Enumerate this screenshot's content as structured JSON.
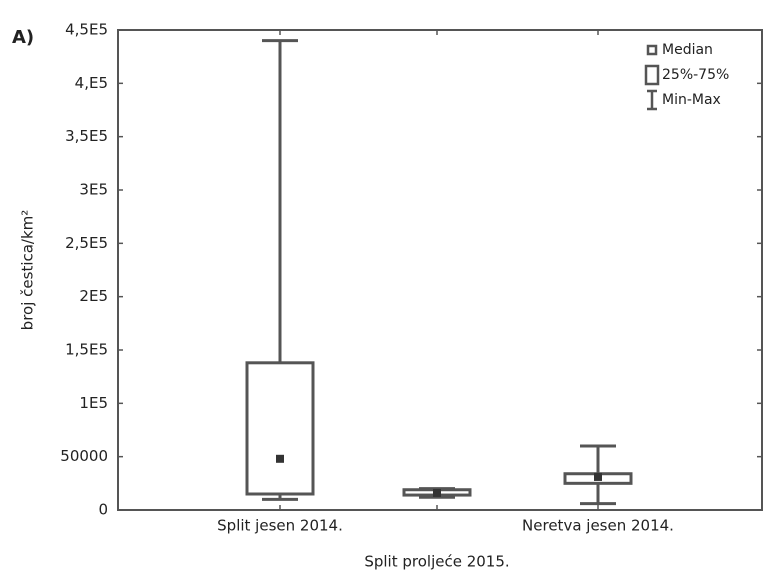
{
  "chart_data": {
    "type": "box",
    "panel_label": "A)",
    "ylabel": "broj čestica/km²",
    "categories": [
      "Split jesen 2014.",
      "Split proljeće 2015.",
      "Neretva jesen 2014."
    ],
    "min": [
      10000,
      12000,
      6000
    ],
    "q1": [
      15000,
      14000,
      25000
    ],
    "median": [
      48000,
      16000,
      31000
    ],
    "q3": [
      138000,
      19000,
      34000
    ],
    "max": [
      440000,
      20000,
      60000
    ],
    "color": "#555555",
    "ylim": [
      0,
      450000
    ],
    "yticks": [
      0,
      50000,
      {
        "value": 100000,
        "label": "1E5"
      },
      {
        "value": 150000,
        "label": "1,5E5"
      },
      {
        "value": 200000,
        "label": "2E5"
      },
      {
        "value": 250000,
        "label": "2,5E5"
      },
      {
        "value": 300000,
        "label": "3E5"
      },
      {
        "value": 350000,
        "label": "3,5E5"
      },
      {
        "value": 400000,
        "label": "4,E5"
      },
      {
        "value": 450000,
        "label": "4,5E5"
      }
    ],
    "legend": {
      "position": "upper right",
      "entries": [
        "Median",
        "25%-75%",
        "Min-Max"
      ]
    }
  }
}
